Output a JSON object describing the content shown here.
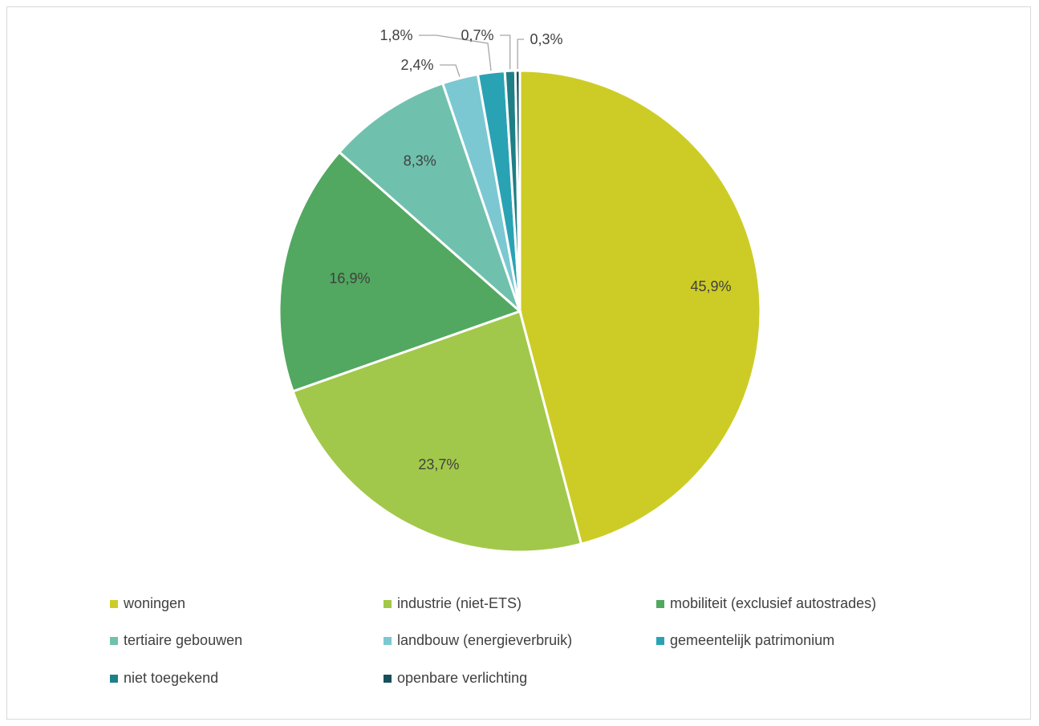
{
  "chart_data": {
    "type": "pie",
    "title": "",
    "categories": [
      "woningen",
      "industrie (niet-ETS)",
      "mobiliteit (exclusief autostrades)",
      "tertiaire gebouwen",
      "landbouw (energieverbruik)",
      "gemeentelijk patrimonium",
      "niet toegekend",
      "openbare verlichting"
    ],
    "values": [
      45.9,
      23.7,
      16.9,
      8.3,
      2.4,
      1.8,
      0.7,
      0.3
    ],
    "labels": [
      "45,9%",
      "23,7%",
      "16,9%",
      "8,3%",
      "2,4%",
      "1,8%",
      "0,7%",
      "0,3%"
    ],
    "colors": [
      "#cdcc26",
      "#a1c84a",
      "#52a860",
      "#6fc1ad",
      "#7bc8d2",
      "#29a3b3",
      "#1f7f86",
      "#184f5a"
    ],
    "legend_position": "bottom",
    "start_angle": "12 o'clock",
    "direction": "clockwise"
  }
}
